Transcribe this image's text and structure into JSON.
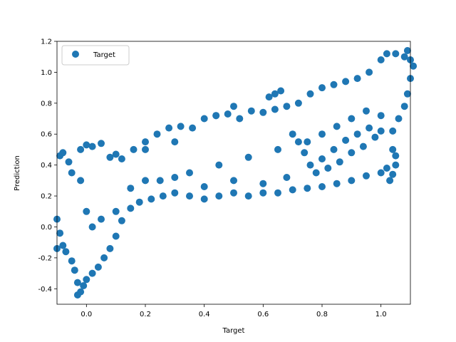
{
  "chart_data": {
    "type": "scatter",
    "xlabel": "Target",
    "ylabel": "Prediction",
    "xlim": [
      -0.1,
      1.1
    ],
    "ylim": [
      -0.5,
      1.2
    ],
    "xticks": [
      "0.0",
      "0.2",
      "0.4",
      "0.6",
      "0.8",
      "1.0"
    ],
    "xtick_values": [
      0.0,
      0.2,
      0.4,
      0.6,
      0.8,
      1.0
    ],
    "yticks": [
      "-0.4",
      "-0.2",
      "0.0",
      "0.2",
      "0.4",
      "0.6",
      "0.8",
      "1.0",
      "1.2"
    ],
    "ytick_values": [
      -0.4,
      -0.2,
      0.0,
      0.2,
      0.4,
      0.6,
      0.8,
      1.0,
      1.2
    ],
    "legend": {
      "position": "upper-left",
      "entries": [
        "Target"
      ]
    },
    "grid": false,
    "marker_color": "#1f77b4",
    "series": [
      {
        "name": "Target",
        "points": [
          [
            -0.1,
            0.05
          ],
          [
            -0.09,
            -0.04
          ],
          [
            -0.1,
            -0.14
          ],
          [
            -0.09,
            0.46
          ],
          [
            -0.08,
            0.48
          ],
          [
            -0.06,
            0.42
          ],
          [
            -0.08,
            -0.12
          ],
          [
            -0.07,
            -0.16
          ],
          [
            -0.05,
            -0.22
          ],
          [
            -0.04,
            -0.28
          ],
          [
            -0.03,
            -0.36
          ],
          [
            -0.03,
            -0.44
          ],
          [
            -0.02,
            -0.42
          ],
          [
            -0.01,
            -0.38
          ],
          [
            0.0,
            -0.34
          ],
          [
            0.02,
            -0.3
          ],
          [
            0.04,
            -0.26
          ],
          [
            0.06,
            -0.2
          ],
          [
            0.08,
            -0.14
          ],
          [
            0.1,
            -0.06
          ],
          [
            0.12,
            0.04
          ],
          [
            0.15,
            0.12
          ],
          [
            0.18,
            0.16
          ],
          [
            0.22,
            0.18
          ],
          [
            0.26,
            0.2
          ],
          [
            0.3,
            0.22
          ],
          [
            0.35,
            0.2
          ],
          [
            0.4,
            0.18
          ],
          [
            0.45,
            0.2
          ],
          [
            0.5,
            0.22
          ],
          [
            0.55,
            0.2
          ],
          [
            0.6,
            0.22
          ],
          [
            0.65,
            0.22
          ],
          [
            0.7,
            0.24
          ],
          [
            0.75,
            0.25
          ],
          [
            0.8,
            0.26
          ],
          [
            0.85,
            0.28
          ],
          [
            0.9,
            0.3
          ],
          [
            0.95,
            0.33
          ],
          [
            1.0,
            0.35
          ],
          [
            1.02,
            0.38
          ],
          [
            -0.02,
            0.5
          ],
          [
            0.0,
            0.53
          ],
          [
            0.02,
            0.52
          ],
          [
            0.05,
            0.54
          ],
          [
            0.08,
            0.45
          ],
          [
            0.12,
            0.44
          ],
          [
            0.16,
            0.5
          ],
          [
            0.2,
            0.55
          ],
          [
            0.24,
            0.6
          ],
          [
            0.28,
            0.64
          ],
          [
            0.32,
            0.65
          ],
          [
            0.36,
            0.64
          ],
          [
            0.4,
            0.7
          ],
          [
            0.44,
            0.72
          ],
          [
            0.48,
            0.73
          ],
          [
            0.52,
            0.7
          ],
          [
            0.56,
            0.75
          ],
          [
            0.6,
            0.74
          ],
          [
            0.64,
            0.76
          ],
          [
            0.68,
            0.78
          ],
          [
            0.72,
            0.8
          ],
          [
            0.76,
            0.86
          ],
          [
            0.8,
            0.9
          ],
          [
            0.84,
            0.92
          ],
          [
            0.88,
            0.94
          ],
          [
            0.92,
            0.96
          ],
          [
            0.96,
            1.0
          ],
          [
            1.0,
            1.08
          ],
          [
            1.02,
            1.12
          ],
          [
            1.05,
            1.12
          ],
          [
            1.08,
            1.1
          ],
          [
            1.09,
            1.14
          ],
          [
            1.1,
            1.08
          ],
          [
            1.11,
            1.04
          ],
          [
            1.1,
            0.96
          ],
          [
            1.09,
            0.86
          ],
          [
            1.08,
            0.78
          ],
          [
            1.06,
            0.7
          ],
          [
            1.04,
            0.62
          ],
          [
            0.62,
            0.84
          ],
          [
            0.64,
            0.86
          ],
          [
            0.66,
            0.88
          ],
          [
            0.5,
            0.78
          ],
          [
            0.44,
            0.72
          ],
          [
            0.3,
            0.55
          ],
          [
            0.2,
            0.5
          ],
          [
            0.1,
            0.47
          ],
          [
            -0.05,
            0.35
          ],
          [
            -0.02,
            0.3
          ],
          [
            0.0,
            0.1
          ],
          [
            0.02,
            0.0
          ],
          [
            0.05,
            0.05
          ],
          [
            0.1,
            0.1
          ],
          [
            0.15,
            0.25
          ],
          [
            0.25,
            0.3
          ],
          [
            0.35,
            0.35
          ],
          [
            0.45,
            0.4
          ],
          [
            0.55,
            0.45
          ],
          [
            0.65,
            0.5
          ],
          [
            0.75,
            0.55
          ],
          [
            0.8,
            0.6
          ],
          [
            0.85,
            0.65
          ],
          [
            0.9,
            0.7
          ],
          [
            0.95,
            0.75
          ],
          [
            0.82,
            0.38
          ],
          [
            0.86,
            0.42
          ],
          [
            0.9,
            0.48
          ],
          [
            0.94,
            0.52
          ],
          [
            0.98,
            0.58
          ],
          [
            1.0,
            0.62
          ],
          [
            0.8,
            0.44
          ],
          [
            0.84,
            0.5
          ],
          [
            0.88,
            0.56
          ],
          [
            0.92,
            0.6
          ],
          [
            0.96,
            0.64
          ],
          [
            1.0,
            0.72
          ],
          [
            1.03,
            0.3
          ],
          [
            1.04,
            0.34
          ],
          [
            1.05,
            0.4
          ],
          [
            1.05,
            0.46
          ],
          [
            1.04,
            0.5
          ],
          [
            0.78,
            0.35
          ],
          [
            0.76,
            0.4
          ],
          [
            0.74,
            0.48
          ],
          [
            0.72,
            0.55
          ],
          [
            0.7,
            0.6
          ],
          [
            0.68,
            0.32
          ],
          [
            0.6,
            0.28
          ],
          [
            0.5,
            0.3
          ],
          [
            0.4,
            0.26
          ],
          [
            0.3,
            0.32
          ],
          [
            0.2,
            0.3
          ]
        ]
      }
    ]
  }
}
